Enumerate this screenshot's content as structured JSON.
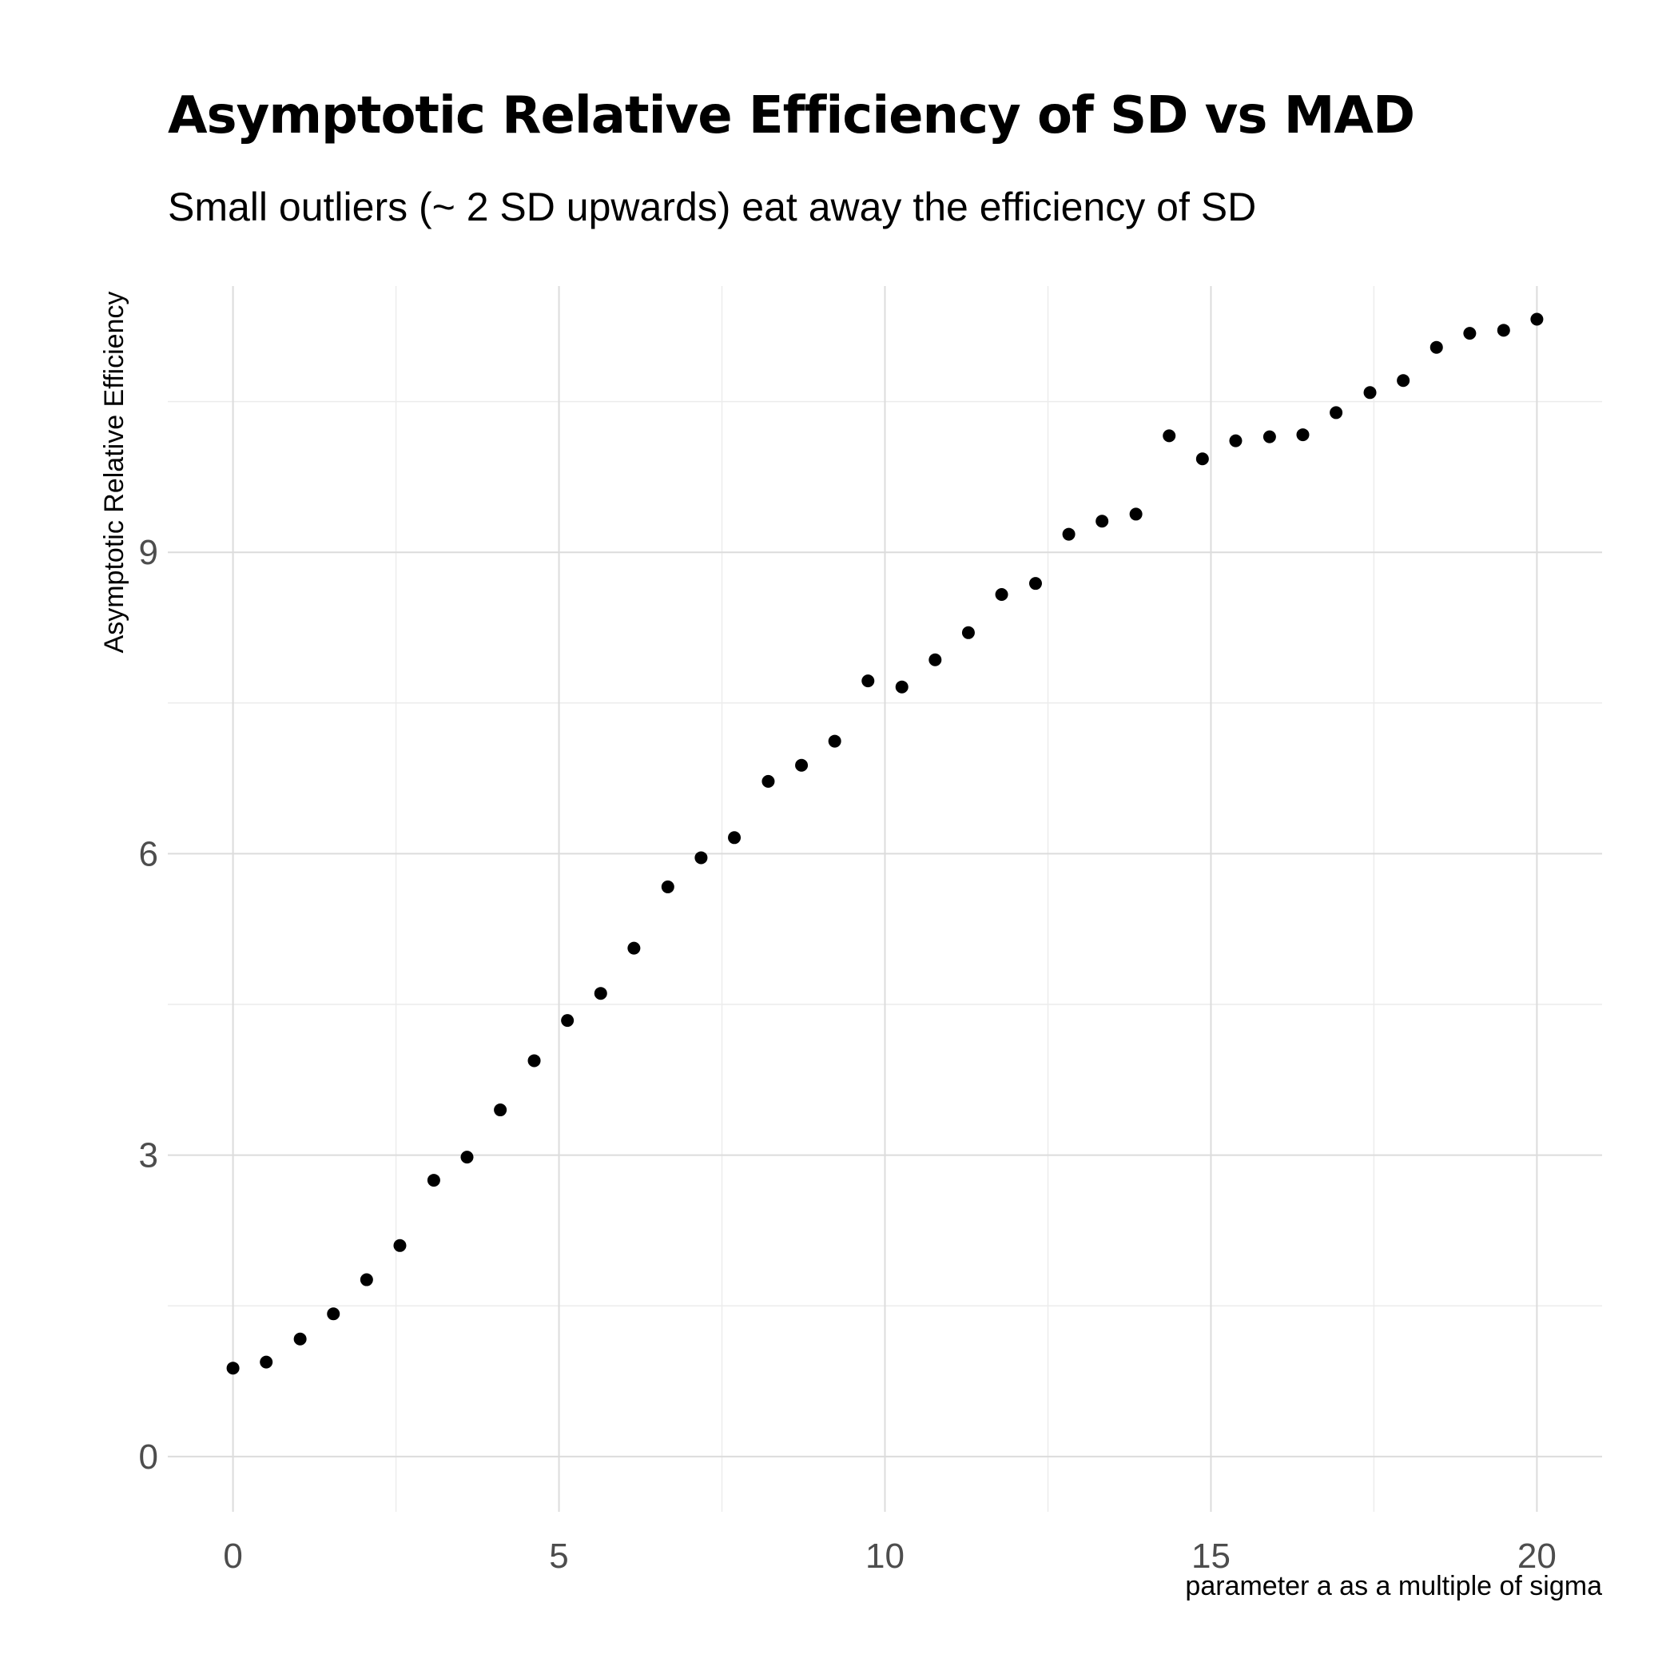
{
  "chart_data": {
    "type": "scatter",
    "title": "Asymptotic Relative Efficiency of SD vs MAD",
    "subtitle": "Small outliers (~ 2 SD upwards) eat away the efficiency of SD",
    "xlabel": "parameter a as a multiple of sigma",
    "ylabel": "Asymptotic Relative Efficiency",
    "xlim": [
      -1,
      21
    ],
    "ylim": [
      -0.55,
      11.65
    ],
    "x_ticks": [
      0,
      5,
      10,
      15,
      20
    ],
    "y_ticks": [
      0,
      3,
      6,
      9
    ],
    "grid": true,
    "point_color": "#000000",
    "series": [
      {
        "x": [
          0,
          0.51,
          1.03,
          1.54,
          2.05,
          2.56,
          3.08,
          3.59,
          4.1,
          4.62,
          5.13,
          5.64,
          6.15,
          6.67,
          7.18,
          7.69,
          8.21,
          8.72,
          9.23,
          9.74,
          10.26,
          10.77,
          11.28,
          11.79,
          12.31,
          12.82,
          13.33,
          13.85,
          14.36,
          14.87,
          15.38,
          15.9,
          16.41,
          16.92,
          17.44,
          17.95,
          18.46,
          18.97,
          19.49,
          20.0
        ],
        "y": [
          0.88,
          0.94,
          1.17,
          1.42,
          1.76,
          2.1,
          2.75,
          2.98,
          3.45,
          3.94,
          4.34,
          4.61,
          5.06,
          5.67,
          5.96,
          6.16,
          6.72,
          6.88,
          7.12,
          7.72,
          7.66,
          7.93,
          8.2,
          8.58,
          8.69,
          9.18,
          9.31,
          9.38,
          10.16,
          9.93,
          10.11,
          10.15,
          10.17,
          10.39,
          10.59,
          10.71,
          11.04,
          11.18,
          11.21,
          11.32
        ]
      }
    ]
  }
}
